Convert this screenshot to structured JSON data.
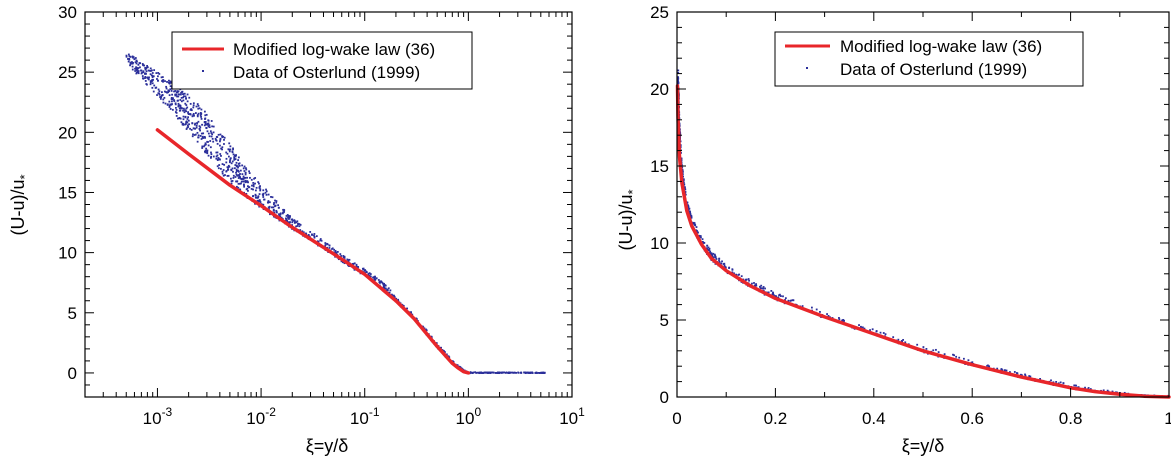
{
  "chart_data": [
    {
      "type": "line",
      "x_scale": "log",
      "xlabel": "ξ=y/δ",
      "ylabel": "(U-u)/u*",
      "xlim": [
        0.0002,
        10
      ],
      "ylim": [
        -2,
        30
      ],
      "x_ticks": [
        {
          "value": 0.001,
          "base": "10",
          "exp": "-3"
        },
        {
          "value": 0.01,
          "base": "10",
          "exp": "-2"
        },
        {
          "value": 0.1,
          "base": "10",
          "exp": "-1"
        },
        {
          "value": 1,
          "base": "10",
          "exp": "0"
        },
        {
          "value": 10,
          "base": "10",
          "exp": "1"
        }
      ],
      "y_ticks": [
        "0",
        "5",
        "10",
        "15",
        "20",
        "25",
        "30"
      ],
      "legend_position": "top-right",
      "grid": false,
      "series": [
        {
          "name": "Modified log-wake law (36)",
          "kind": "line",
          "color": "#e8262a",
          "x": [
            0.001,
            0.002,
            0.005,
            0.01,
            0.02,
            0.05,
            0.1,
            0.2,
            0.3,
            0.5,
            0.7,
            0.8,
            0.9,
            1.0
          ],
          "y": [
            20.2,
            18.2,
            15.6,
            13.9,
            12.1,
            9.9,
            8.2,
            6.0,
            4.5,
            2.2,
            0.8,
            0.4,
            0.1,
            0.0
          ]
        },
        {
          "name": "Data of Osterlund (1999)",
          "kind": "scatter",
          "color": "#2b2f9a",
          "x": [
            0.0005,
            0.0007,
            0.001,
            0.0015,
            0.002,
            0.003,
            0.005,
            0.007,
            0.01,
            0.015,
            0.02,
            0.03,
            0.05,
            0.07,
            0.1,
            0.15,
            0.2,
            0.3,
            0.5,
            0.7,
            0.9,
            1.0,
            1.5,
            2,
            3,
            4,
            5.5
          ],
          "y": [
            26.0,
            24.8,
            23.5,
            22.0,
            20.8,
            19.0,
            16.6,
            15.3,
            14.2,
            13.0,
            12.2,
            11.2,
            9.9,
            9.0,
            8.2,
            7.2,
            6.0,
            4.5,
            2.2,
            0.8,
            0.1,
            0.0,
            0.0,
            0.0,
            0.0,
            0.0,
            0.0
          ],
          "spread": [
            0.5,
            0.7,
            1.0,
            1.3,
            1.6,
            1.7,
            1.7,
            1.3,
            1.0,
            0.7,
            0.5,
            0.4,
            0.3,
            0.3,
            0.3,
            0.25,
            0.25,
            0.2,
            0.2,
            0.15,
            0.1,
            0.05,
            0.03,
            0.03,
            0.03,
            0.03,
            0.03
          ]
        }
      ]
    },
    {
      "type": "line",
      "x_scale": "linear",
      "xlabel": "ξ=y/δ",
      "ylabel": "(U-u)/u*",
      "xlim": [
        0,
        1
      ],
      "ylim": [
        0,
        25
      ],
      "x_ticks": [
        {
          "value": 0,
          "label": "0"
        },
        {
          "value": 0.2,
          "label": "0.2"
        },
        {
          "value": 0.4,
          "label": "0.4"
        },
        {
          "value": 0.6,
          "label": "0.6"
        },
        {
          "value": 0.8,
          "label": "0.8"
        },
        {
          "value": 1,
          "label": "1"
        }
      ],
      "y_ticks": [
        "0",
        "5",
        "10",
        "15",
        "20",
        "25"
      ],
      "legend_position": "top-right",
      "grid": false,
      "series": [
        {
          "name": "Modified log-wake law (36)",
          "kind": "line",
          "color": "#e8262a",
          "x": [
            0.001,
            0.002,
            0.005,
            0.01,
            0.02,
            0.03,
            0.05,
            0.07,
            0.1,
            0.15,
            0.2,
            0.3,
            0.4,
            0.5,
            0.6,
            0.7,
            0.8,
            0.85,
            0.9,
            0.95,
            1.0
          ],
          "y": [
            20.2,
            18.2,
            15.6,
            13.9,
            12.1,
            11.1,
            9.9,
            9.0,
            8.2,
            7.2,
            6.4,
            5.2,
            4.1,
            3.0,
            2.1,
            1.3,
            0.6,
            0.35,
            0.18,
            0.05,
            0.0
          ]
        },
        {
          "name": "Data of Osterlund (1999)",
          "kind": "scatter",
          "color": "#2b2f9a",
          "x": [
            0.0005,
            0.001,
            0.002,
            0.005,
            0.01,
            0.02,
            0.03,
            0.05,
            0.07,
            0.1,
            0.15,
            0.2,
            0.3,
            0.4,
            0.5,
            0.6,
            0.7,
            0.8,
            0.85,
            0.9,
            0.95,
            1.0
          ],
          "y": [
            25.0,
            22.5,
            20.0,
            16.5,
            14.2,
            12.2,
            11.2,
            9.9,
            9.0,
            8.2,
            7.2,
            6.4,
            5.2,
            4.1,
            3.0,
            2.1,
            1.3,
            0.6,
            0.35,
            0.18,
            0.05,
            0.0
          ],
          "spread": [
            1.5,
            1.5,
            1.3,
            1.0,
            0.6,
            0.4,
            0.35,
            0.3,
            0.3,
            0.25,
            0.25,
            0.25,
            0.2,
            0.2,
            0.2,
            0.2,
            0.15,
            0.15,
            0.1,
            0.1,
            0.05,
            0.05
          ]
        }
      ]
    }
  ]
}
